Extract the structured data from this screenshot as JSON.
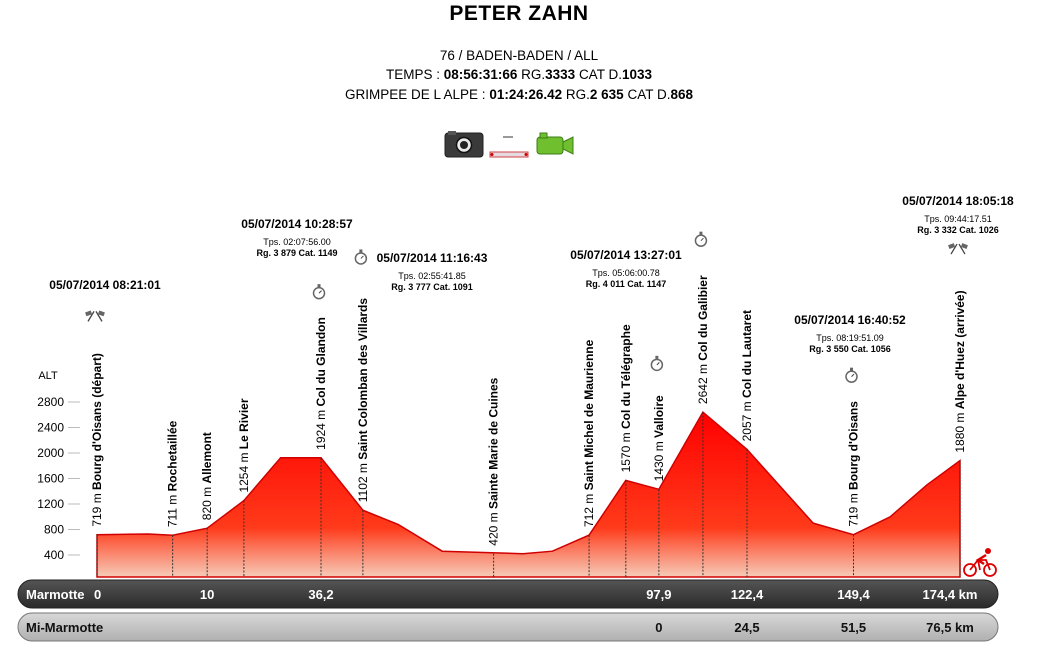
{
  "header": {
    "name": "PETER ZAHN",
    "entry": "76 / BADEN-BADEN / ALL",
    "temps_label": "TEMPS :",
    "temps_value": "08:56:31:66",
    "temps_rg_label": "RG.",
    "temps_rg": "3333",
    "temps_cat_label": "CAT D.",
    "temps_cat": "1033",
    "grimpee_label": "GRIMPEE DE L ALPE :",
    "grimpee_value": "01:24:26.42",
    "grimpee_rg_label": "RG.",
    "grimpee_rg": "2 635",
    "grimpee_cat_label": "CAT D.",
    "grimpee_cat": "868"
  },
  "media": {
    "photo_icon": "camera-icon",
    "ticket_icon": "ticket-icon",
    "video_icon": "video-camera-icon"
  },
  "chart_data": {
    "type": "area",
    "ylabel": "ALT",
    "yticks": [
      400,
      800,
      1200,
      1600,
      2000,
      2400,
      2800
    ],
    "ylim": [
      0,
      2900
    ],
    "xlim": [
      0,
      174.4
    ],
    "colors": {
      "fill_top": "#ff0000",
      "fill_bottom": "#f3c0b0",
      "line": "#dd0000"
    },
    "profile": [
      {
        "km": 0,
        "alt": 719
      },
      {
        "km": 7,
        "alt": 730
      },
      {
        "km": 10.3,
        "alt": 711
      },
      {
        "km": 15,
        "alt": 820
      },
      {
        "km": 20,
        "alt": 1254
      },
      {
        "km": 25,
        "alt": 1924
      },
      {
        "km": 30.5,
        "alt": 1924
      },
      {
        "km": 36.2,
        "alt": 1102
      },
      {
        "km": 41,
        "alt": 880
      },
      {
        "km": 47,
        "alt": 460
      },
      {
        "km": 58,
        "alt": 420
      },
      {
        "km": 62,
        "alt": 460
      },
      {
        "km": 67,
        "alt": 712
      },
      {
        "km": 72,
        "alt": 1570
      },
      {
        "km": 76.5,
        "alt": 1430
      },
      {
        "km": 82.5,
        "alt": 2642
      },
      {
        "km": 88.5,
        "alt": 2057
      },
      {
        "km": 97.5,
        "alt": 900
      },
      {
        "km": 103,
        "alt": 719
      },
      {
        "km": 108,
        "alt": 1000
      },
      {
        "km": 113,
        "alt": 1500
      },
      {
        "km": 117.5,
        "alt": 1880
      }
    ],
    "points": [
      {
        "km": 0,
        "alt": 719,
        "label": "719 m Bourg d'Oisans (départ)",
        "icon": "flag"
      },
      {
        "km": 10.3,
        "alt": 711,
        "label": "711 m Rochetaillée"
      },
      {
        "km": 15,
        "alt": 820,
        "label": "820 m Allemont"
      },
      {
        "km": 20,
        "alt": 1254,
        "label": "1254 m Le Rivier"
      },
      {
        "km": 30.5,
        "alt": 1924,
        "label": "1924 m Col du Glandon",
        "icon": "stopwatch"
      },
      {
        "km": 36.2,
        "alt": 1102,
        "label": "1102 m Saint Colomban des Villards",
        "icon": "stopwatch"
      },
      {
        "km": 54,
        "alt": 420,
        "label": "420 m Sainte Marie de Cuines"
      },
      {
        "km": 67,
        "alt": 712,
        "label": "712 m Saint Michel de Maurienne"
      },
      {
        "km": 72,
        "alt": 1570,
        "label": "1570 m Col du Télégraphe"
      },
      {
        "km": 76.5,
        "alt": 1430,
        "label": "1430 m Valloire",
        "icon": "stopwatch"
      },
      {
        "km": 82.5,
        "alt": 2642,
        "label": "2642 m Col du Galibier",
        "icon": "stopwatch"
      },
      {
        "km": 88.5,
        "alt": 2057,
        "label": "2057 m Col du Lautaret"
      },
      {
        "km": 103,
        "alt": 719,
        "label": "719 m Bourg d'Oisans",
        "icon": "stopwatch"
      },
      {
        "km": 117.5,
        "alt": 1880,
        "label": "1880 m Alpe d'Huez (arrivée)",
        "icon": "flag"
      }
    ],
    "timings": [
      {
        "km": 0,
        "lines": [
          "05/07/2014 08:21:01"
        ]
      },
      {
        "km": 30.5,
        "lines": [
          "05/07/2014 10:28:57",
          "Tps. 02:07:56.00",
          "Rg. 3 879 Cat. 1149"
        ]
      },
      {
        "km": 36.2,
        "lines": [
          "05/07/2014 11:16:43",
          "Tps. 02:55:41.85",
          "Rg. 3 777 Cat. 1091"
        ]
      },
      {
        "km": 76.5,
        "lines": [
          "05/07/2014 13:27:01",
          "Tps. 05:06:00.78",
          "Rg. 4 011 Cat. 1147"
        ]
      },
      {
        "km": 103,
        "lines": [
          "05/07/2014 16:40:52",
          "Tps. 08:19:51.09",
          "Rg. 3 550 Cat. 1056"
        ]
      },
      {
        "km": 117.5,
        "lines": [
          "05/07/2014 18:05:18",
          "Tps. 09:44:17.51",
          "Rg. 3 332 Cat. 1026"
        ]
      }
    ],
    "distance_bars": [
      {
        "name": "Marmotte",
        "unit": "km",
        "marks": [
          {
            "km": 0,
            "text": "0"
          },
          {
            "km": 15,
            "text": "10"
          },
          {
            "km": 30.5,
            "text": "36,2"
          },
          {
            "km": 76.5,
            "text": "97,9"
          },
          {
            "km": 88.5,
            "text": "122,4"
          },
          {
            "km": 103,
            "text": "149,4"
          },
          {
            "km": 117.5,
            "text": "174,4"
          }
        ]
      },
      {
        "name": "Mi-Marmotte",
        "unit": "km",
        "marks": [
          {
            "km": 76.5,
            "text": "0"
          },
          {
            "km": 88.5,
            "text": "24,5"
          },
          {
            "km": 103,
            "text": "51,5"
          },
          {
            "km": 117.5,
            "text": "76,5"
          }
        ]
      }
    ],
    "finish_icon": "cyclist-icon"
  }
}
